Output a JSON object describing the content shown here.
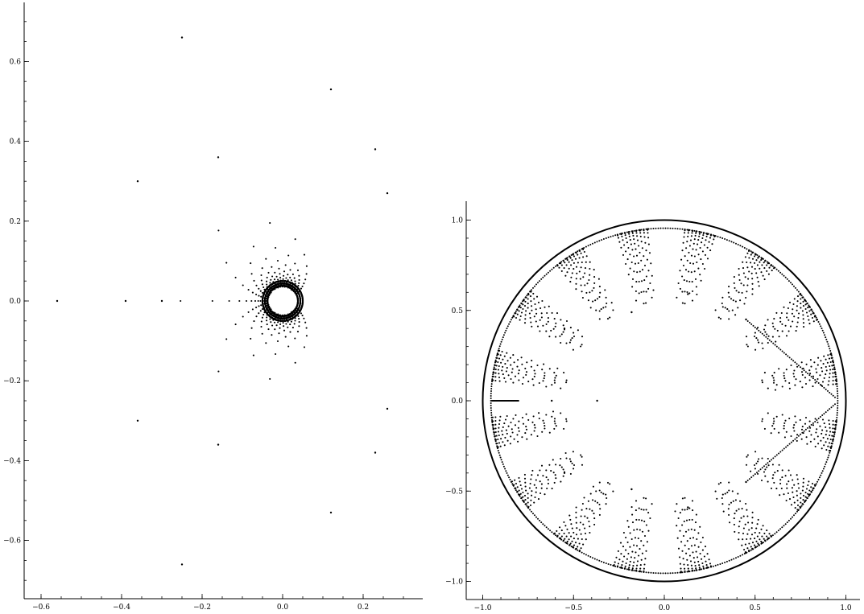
{
  "chart_data": [
    {
      "type": "scatter",
      "title": "",
      "xlabel": "",
      "ylabel": "",
      "xlim": [
        -0.63,
        0.34
      ],
      "ylim": [
        -0.74,
        0.74
      ],
      "x_ticks": [
        -0.6,
        -0.4,
        -0.2,
        0.0,
        0.2
      ],
      "x_tick_labels": [
        "−0.6",
        "−0.4",
        "−0.2",
        "0.0",
        "0.2"
      ],
      "y_ticks": [
        -0.6,
        -0.4,
        -0.2,
        0.0,
        0.2,
        0.4,
        0.6
      ],
      "y_tick_labels": [
        "−0.6",
        "−0.4",
        "−0.2",
        "0.0",
        "0.2",
        "0.4",
        "0.6"
      ],
      "grid": false,
      "point_color": "#000000",
      "description_of_points": "Points 1/z of a family of ellipse points; dense ring of radius ~0.035 around origin with spiraling arcs opening to the left",
      "sample_points": [
        [
          -0.56,
          0.0
        ],
        [
          -0.39,
          0.0
        ],
        [
          -0.3,
          0.0
        ],
        [
          -0.25,
          0.66
        ],
        [
          -0.25,
          -0.66
        ],
        [
          0.12,
          0.53
        ],
        [
          0.12,
          -0.53
        ],
        [
          0.23,
          0.38
        ],
        [
          0.23,
          -0.38
        ],
        [
          -0.36,
          0.3
        ],
        [
          -0.36,
          -0.3
        ],
        [
          -0.16,
          0.36
        ],
        [
          -0.16,
          -0.36
        ],
        [
          0.26,
          0.27
        ],
        [
          0.26,
          -0.27
        ]
      ],
      "central_hole": {
        "center": [
          0.0,
          0.0
        ],
        "radius": 0.035
      }
    },
    {
      "type": "scatter",
      "title": "",
      "xlabel": "",
      "ylabel": "",
      "xlim": [
        -1.1,
        1.1
      ],
      "ylim": [
        -1.1,
        1.1
      ],
      "x_ticks": [
        -1.0,
        -0.5,
        0.0,
        0.5,
        1.0
      ],
      "x_tick_labels": [
        "−1.0",
        "−0.5",
        "0.0",
        "0.5",
        "1.0"
      ],
      "y_ticks": [
        -1.0,
        -0.5,
        0.0,
        0.5,
        1.0
      ],
      "y_tick_labels": [
        "−1.0",
        "−0.5",
        "0.0",
        "0.5",
        "1.0"
      ],
      "grid": false,
      "point_color": "#000000",
      "unit_circle": {
        "center": [
          0.0,
          0.0
        ],
        "radius": 1.0
      },
      "description_of_points": "Points inside unit disk clustered in fan shapes near the boundary, sparse scattered points in interior",
      "sample_points": [
        [
          -0.37,
          0.0
        ],
        [
          -0.62,
          0.0
        ],
        [
          -0.18,
          0.49
        ],
        [
          -0.18,
          -0.49
        ],
        [
          0.13,
          0.59
        ],
        [
          0.13,
          -0.59
        ],
        [
          -0.55,
          0.4
        ],
        [
          -0.55,
          -0.4
        ],
        [
          0.45,
          0.45
        ],
        [
          0.45,
          -0.45
        ]
      ]
    }
  ]
}
